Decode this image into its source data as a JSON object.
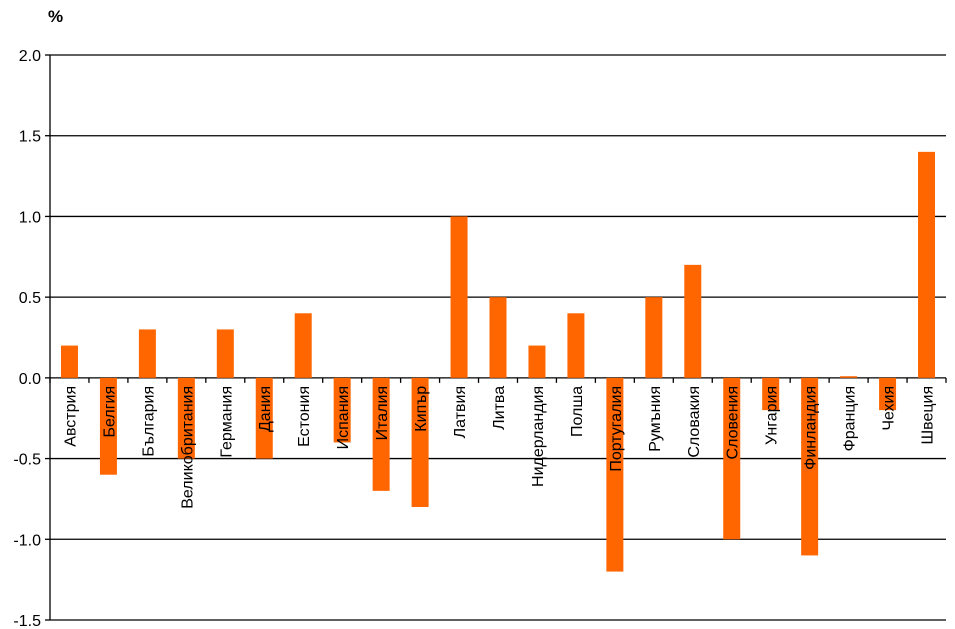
{
  "chart_data": {
    "type": "bar",
    "unit_label": "%",
    "categories": [
      "Австрия",
      "Белгия",
      "България",
      "Великобритания",
      "Германия",
      "Дания",
      "Естония",
      "Испания",
      "Италия",
      "Кипър",
      "Латвия",
      "Литва",
      "Нидерландия",
      "Полша",
      "Португалия",
      "Румъния",
      "Словакия",
      "Словения",
      "Унгария",
      "Финландия",
      "Франция",
      "Чехия",
      "Швеция"
    ],
    "values": [
      0.2,
      -0.6,
      0.3,
      -0.5,
      0.3,
      -0.5,
      0.4,
      -0.4,
      -0.7,
      -0.8,
      1.0,
      0.5,
      0.2,
      0.4,
      -1.2,
      0.5,
      0.7,
      -1.0,
      -0.2,
      -1.1,
      0.01,
      -0.2,
      1.4
    ],
    "ylim": [
      -1.5,
      2.0
    ],
    "yticks": [
      "2.0",
      "1.5",
      "1.0",
      "0.5",
      "0.0",
      "-0.5",
      "-1.0",
      "-1.5"
    ],
    "ytick_values": [
      2.0,
      1.5,
      1.0,
      0.5,
      0.0,
      -0.5,
      -1.0,
      -1.5
    ],
    "grid": true,
    "legend": "none",
    "bar_color": "#ff6600",
    "grid_color": "#000000"
  }
}
